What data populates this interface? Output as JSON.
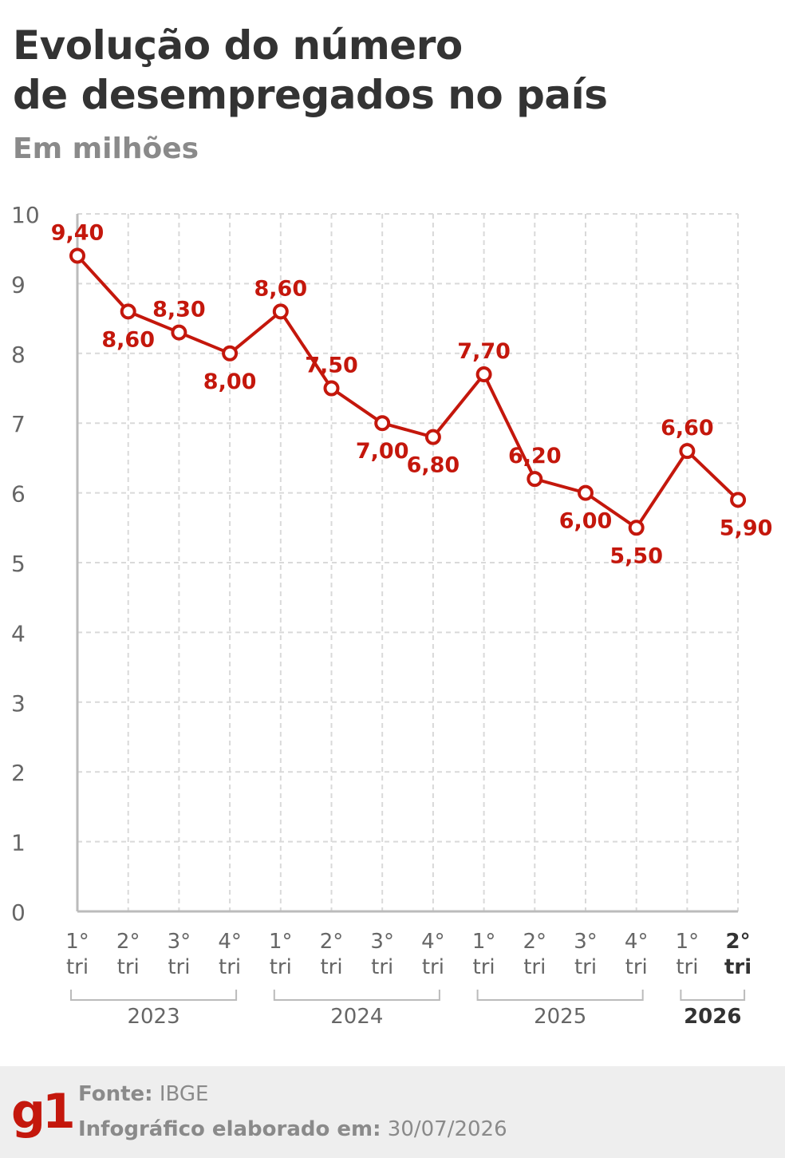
{
  "header": {
    "title_line1": "Evolução do número",
    "title_line2": "de desempregados no país",
    "subtitle": "Em milhões"
  },
  "chart_data": {
    "type": "line",
    "title": "Evolução do número de desempregados no país",
    "subtitle": "Em milhões",
    "ylim": [
      0,
      10
    ],
    "yticks": [
      0,
      1,
      2,
      3,
      4,
      5,
      6,
      7,
      8,
      9,
      10
    ],
    "grid": true,
    "color": "#c4170c",
    "categories": [
      {
        "q": "1°",
        "t": "tri"
      },
      {
        "q": "2°",
        "t": "tri"
      },
      {
        "q": "3°",
        "t": "tri"
      },
      {
        "q": "4°",
        "t": "tri"
      },
      {
        "q": "1°",
        "t": "tri"
      },
      {
        "q": "2°",
        "t": "tri"
      },
      {
        "q": "3°",
        "t": "tri"
      },
      {
        "q": "4°",
        "t": "tri"
      },
      {
        "q": "1°",
        "t": "tri"
      },
      {
        "q": "2°",
        "t": "tri"
      },
      {
        "q": "3°",
        "t": "tri"
      },
      {
        "q": "4°",
        "t": "tri"
      },
      {
        "q": "1°",
        "t": "tri"
      },
      {
        "q": "2°",
        "t": "tri"
      }
    ],
    "years": [
      {
        "label": "2023",
        "from": 0,
        "to": 3
      },
      {
        "label": "2024",
        "from": 4,
        "to": 7
      },
      {
        "label": "2025",
        "from": 8,
        "to": 11
      },
      {
        "label": "2026",
        "from": 12,
        "to": 13
      }
    ],
    "values": [
      9.4,
      8.6,
      8.3,
      8.0,
      8.6,
      7.5,
      7.0,
      6.8,
      7.7,
      6.2,
      6.0,
      5.5,
      6.6,
      5.9
    ],
    "labels": [
      "9,40",
      "8,60",
      "8,30",
      "8,00",
      "8,60",
      "7,50",
      "7,00",
      "6,80",
      "7,70",
      "6,20",
      "6,00",
      "5,50",
      "6,60",
      "5,90"
    ],
    "label_positions": [
      "above",
      "below",
      "above",
      "below",
      "above",
      "above",
      "below",
      "below",
      "above",
      "above",
      "below",
      "below",
      "above",
      "below"
    ]
  },
  "footer": {
    "logo": "g1",
    "source_label": "Fonte:",
    "source_value": "IBGE",
    "created_label": "Infográfico elaborado em:",
    "created_value": "30/07/2026"
  }
}
